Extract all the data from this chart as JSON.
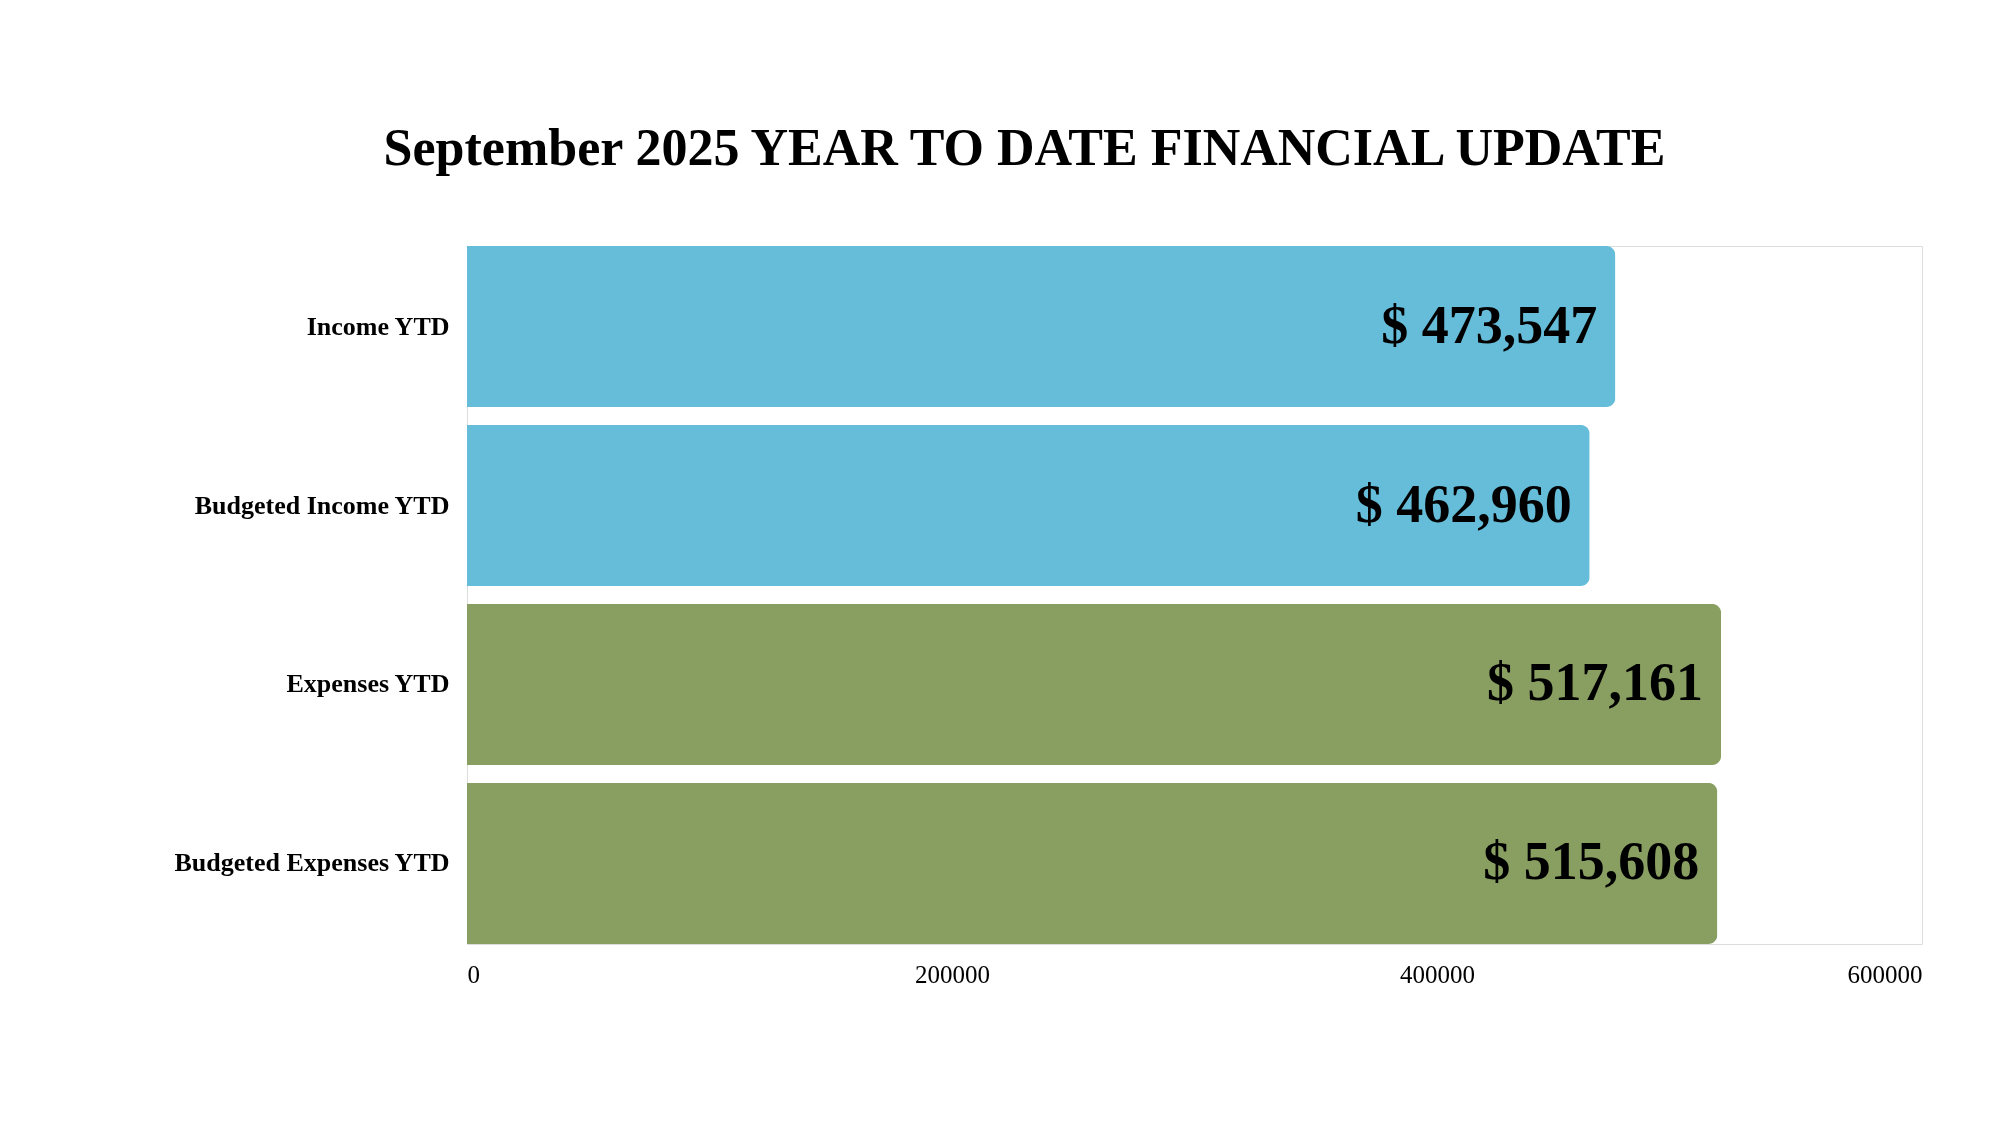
{
  "chart_data": {
    "type": "bar",
    "orientation": "horizontal",
    "title": "September 2025 YEAR TO DATE FINANCIAL UPDATE",
    "categories": [
      "Income YTD",
      "Budgeted Income YTD",
      "Expenses YTD",
      "Budgeted Expenses YTD"
    ],
    "values": [
      473547,
      462960,
      517161,
      515608
    ],
    "colors": [
      "#65bdd9",
      "#65bdd9",
      "#899f61",
      "#899f61"
    ],
    "value_labels": [
      "$ 473,547",
      "$ 462,960",
      "$ 517,161",
      "$ 515,608"
    ],
    "xlim": [
      0,
      600000
    ],
    "xticks": [
      0,
      200000,
      400000,
      600000
    ],
    "grid": false,
    "legend": false
  }
}
